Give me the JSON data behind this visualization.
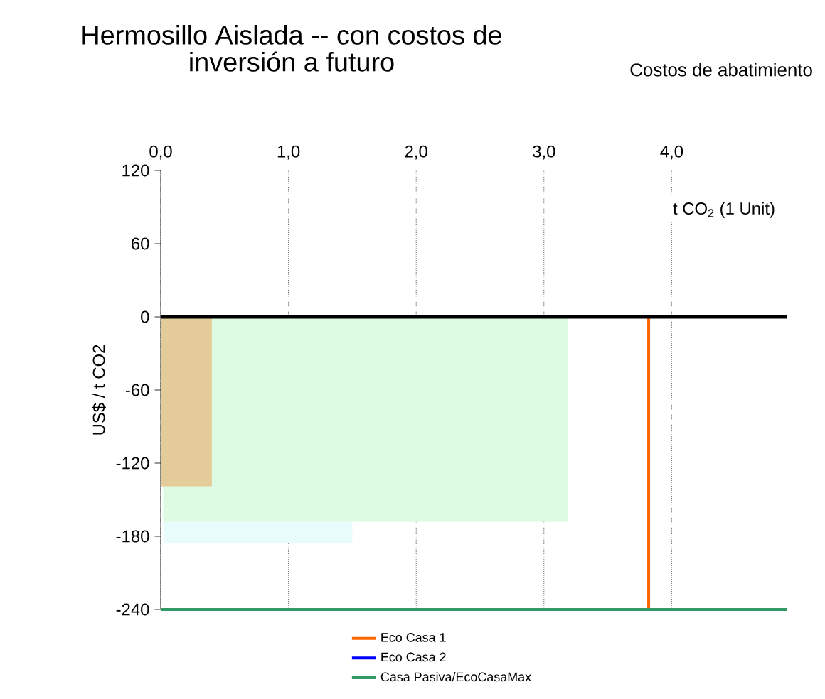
{
  "chart_data": {
    "type": "area",
    "title": "Hermosillo Aislada  -- con costos de inversión a futuro",
    "subtitle": "Costos de abatimiento",
    "xlabel": "t CO$_{2}$ (1 Unit)",
    "ylabel": "US$ / t CO2",
    "xlim": [
      0,
      4.9
    ],
    "ylim": [
      -240,
      120
    ],
    "xticks": [
      {
        "value": 0,
        "label": "0,0"
      },
      {
        "value": 1,
        "label": "1,0"
      },
      {
        "value": 2,
        "label": "2,0"
      },
      {
        "value": 3,
        "label": "3,0"
      },
      {
        "value": 4,
        "label": "4,0"
      }
    ],
    "yticks": [
      -240,
      -180,
      -120,
      -60,
      0,
      60,
      120
    ],
    "grid": "x",
    "legend": "bottom",
    "ref_lines": [
      {
        "axis": "y",
        "value": 0,
        "color": "#000000"
      }
    ],
    "series": [
      {
        "color": "#e8fcfc",
        "x": [
          0.02,
          1.5
        ],
        "values": [
          -186,
          -186
        ]
      },
      {
        "color": "#ddfbe2",
        "x": [
          0.02,
          3.19
        ],
        "values": [
          -168,
          -168
        ]
      },
      {
        "color": "#e3cc9a",
        "x": [
          0.0,
          0.4
        ],
        "values": [
          -139,
          -139
        ]
      },
      {
        "type": "line",
        "name": "Eco Casa 1",
        "color": "#ff6600",
        "x": [
          3.82,
          3.82
        ],
        "values": [
          0,
          -240
        ]
      },
      {
        "type": "line",
        "name": "Eco Casa 2",
        "color": "#0000ff"
      },
      {
        "type": "line",
        "name": "Casa Pasiva/EcoCasaMax",
        "color": "#339966",
        "x": [
          0,
          4.9
        ],
        "values": [
          -240,
          -240
        ]
      }
    ]
  }
}
